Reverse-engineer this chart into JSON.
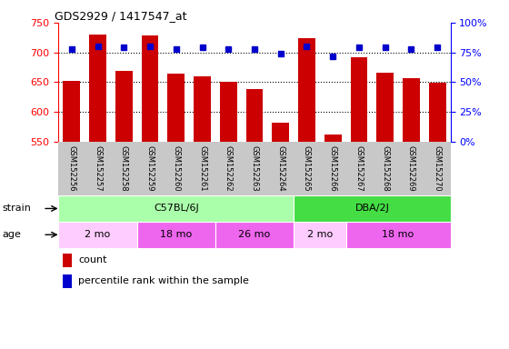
{
  "title": "GDS2929 / 1417547_at",
  "samples": [
    "GSM152256",
    "GSM152257",
    "GSM152258",
    "GSM152259",
    "GSM152260",
    "GSM152261",
    "GSM152262",
    "GSM152263",
    "GSM152264",
    "GSM152265",
    "GSM152266",
    "GSM152267",
    "GSM152268",
    "GSM152269",
    "GSM152270"
  ],
  "counts": [
    652,
    730,
    668,
    728,
    664,
    660,
    651,
    638,
    581,
    724,
    562,
    692,
    666,
    657,
    649
  ],
  "percentile_ranks": [
    78,
    80,
    79,
    80,
    78,
    79,
    78,
    78,
    74,
    80,
    72,
    79,
    79,
    78,
    79
  ],
  "ylim_left": [
    550,
    750
  ],
  "ylim_right": [
    0,
    100
  ],
  "yticks_left": [
    550,
    600,
    650,
    700,
    750
  ],
  "yticks_right": [
    0,
    25,
    50,
    75,
    100
  ],
  "bar_color": "#cc0000",
  "dot_color": "#0000cc",
  "strain_groups": [
    {
      "label": "C57BL/6J",
      "start": 0,
      "end": 9,
      "color": "#aaffaa"
    },
    {
      "label": "DBA/2J",
      "start": 9,
      "end": 15,
      "color": "#44dd44"
    }
  ],
  "age_groups": [
    {
      "label": "2 mo",
      "start": 0,
      "end": 3,
      "color": "#ffccff"
    },
    {
      "label": "18 mo",
      "start": 3,
      "end": 6,
      "color": "#ee66ee"
    },
    {
      "label": "26 mo",
      "start": 6,
      "end": 9,
      "color": "#ee66ee"
    },
    {
      "label": "2 mo",
      "start": 9,
      "end": 11,
      "color": "#ffccff"
    },
    {
      "label": "18 mo",
      "start": 11,
      "end": 15,
      "color": "#ee66ee"
    }
  ],
  "tick_area_color": "#c8c8c8",
  "legend_count_label": "count",
  "legend_pct_label": "percentile rank within the sample",
  "strain_label": "strain",
  "age_label": "age"
}
